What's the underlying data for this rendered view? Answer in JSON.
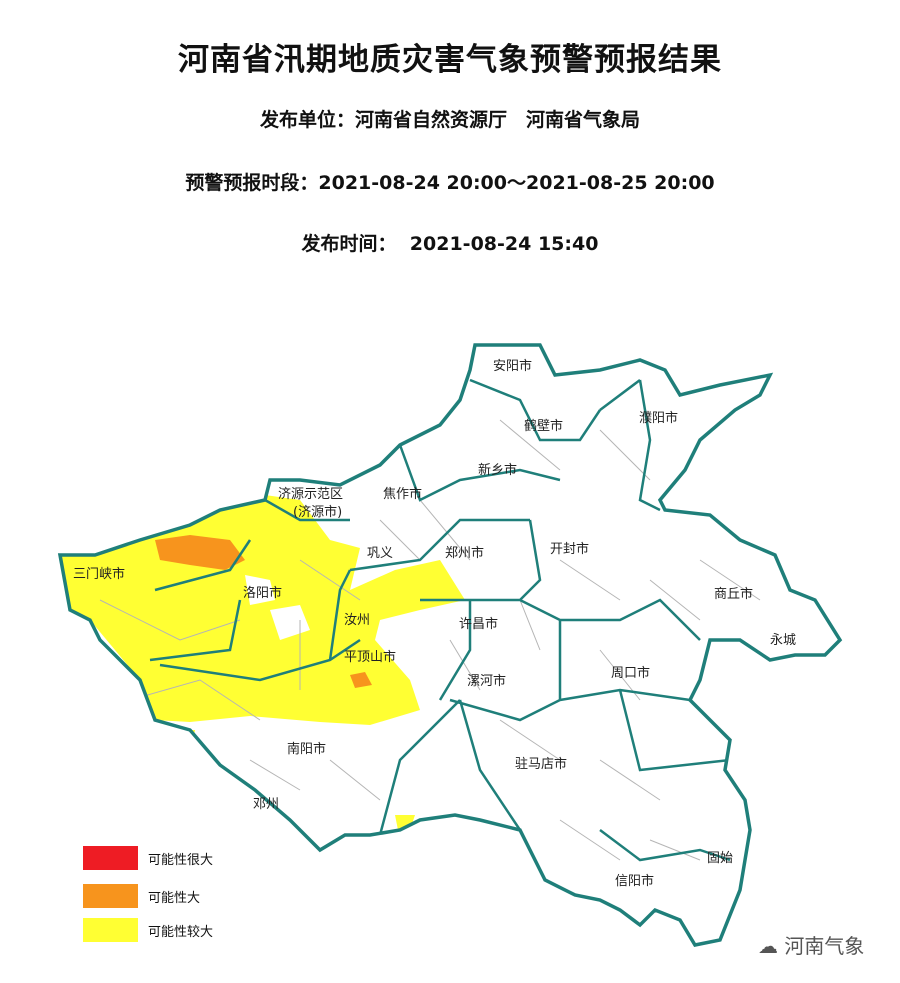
{
  "header": {
    "title": "河南省汛期地质灾害气象预警预报结果",
    "issuer": "发布单位：河南省自然资源厅　河南省气象局",
    "period_label": "预警预报时段：",
    "period_value": "2021-08-24 20:00～2021-08-25 20:00",
    "issue_label": "发布时间：",
    "issue_value": "2021-08-24 15:40"
  },
  "map": {
    "labels": [
      "安阳市",
      "鹤壁市",
      "濮阳市",
      "新乡市",
      "焦作市",
      "济源示范区",
      "(济源市)",
      "三门峡市",
      "洛阳市",
      "巩义",
      "郑州市",
      "开封市",
      "商丘市",
      "永城",
      "汝州",
      "许昌市",
      "平顶山市",
      "漯河市",
      "周口市",
      "南阳市",
      "驻马店市",
      "邓州",
      "信阳市",
      "固始"
    ],
    "colors": {
      "border": "#1f7f7a",
      "county": "#b5b5b5",
      "very_high": "#ee1c24",
      "high": "#f7941d",
      "relatively_high": "#ffff33"
    }
  },
  "legend": [
    {
      "label": "可能性很大",
      "color": "#ee1c24"
    },
    {
      "label": "可能性大",
      "color": "#f7941d"
    },
    {
      "label": "可能性较大",
      "color": "#ffff33"
    }
  ],
  "watermark": "河南气象"
}
